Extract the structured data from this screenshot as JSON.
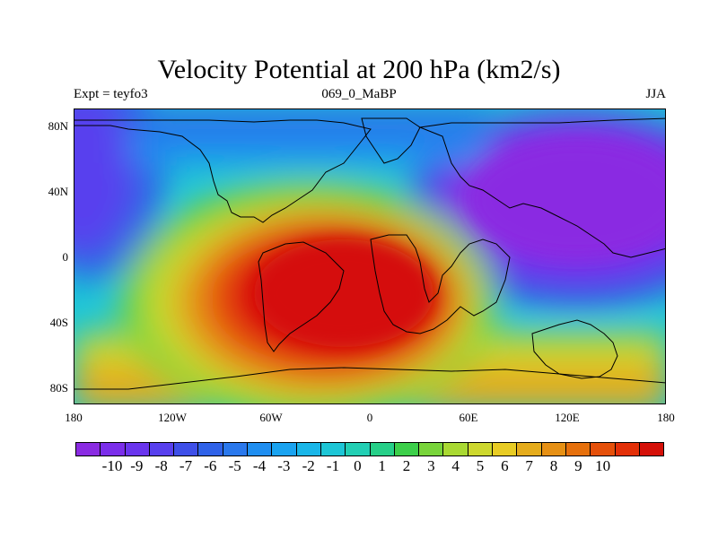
{
  "title": "Velocity Potential at 200 hPa (km2/s)",
  "subtitle_left": "Expt = teyfo3",
  "subtitle_center": "069_0_MaBP",
  "subtitle_right": "JJA",
  "y_ticks": [
    "80N",
    "40N",
    "0",
    "40S",
    "80S"
  ],
  "x_ticks": [
    "180",
    "120W",
    "60W",
    "0",
    "60E",
    "120E",
    "180"
  ],
  "colorbar_labels": [
    "-10",
    "-9",
    "-8",
    "-7",
    "-6",
    "-5",
    "-4",
    "-3",
    "-2",
    "-1",
    "0",
    "1",
    "2",
    "3",
    "4",
    "5",
    "6",
    "7",
    "8",
    "9",
    "10"
  ],
  "colorbar_colors": [
    "#8a2be2",
    "#7b2eea",
    "#6a35ee",
    "#5840ee",
    "#3e4fe8",
    "#2f62e8",
    "#2a78ec",
    "#1f8ef0",
    "#1aa3f0",
    "#19b6e8",
    "#1dc6d6",
    "#22cfb4",
    "#26cf88",
    "#3ccf4a",
    "#78d43a",
    "#a9d932",
    "#cdd82e",
    "#e8cc24",
    "#e5ac1c",
    "#e69014",
    "#e6700c",
    "#e5500a",
    "#e33008",
    "#d51008"
  ],
  "chart_data": {
    "type": "map",
    "title": "Velocity Potential at 200 hPa (km2/s)",
    "variable": "velocity potential",
    "level": "200 hPa",
    "units": "km2/s",
    "experiment": "teyfo3",
    "period": "069_0_MaBP",
    "season": "JJA",
    "lon_range": [
      -180,
      180
    ],
    "lat_range": [
      -90,
      90
    ],
    "contour_levels": [
      -10,
      -9,
      -8,
      -7,
      -6,
      -5,
      -4,
      -3,
      -2,
      -1,
      0,
      1,
      2,
      3,
      4,
      5,
      6,
      7,
      8,
      9,
      10
    ],
    "centers": [
      {
        "sign": "positive",
        "lon": -45,
        "lat": -15,
        "value": 10
      },
      {
        "sign": "negative",
        "lon": 130,
        "lat": 45,
        "value": -10
      },
      {
        "sign": "negative",
        "lon": -170,
        "lat": 60,
        "value": -7
      }
    ]
  }
}
